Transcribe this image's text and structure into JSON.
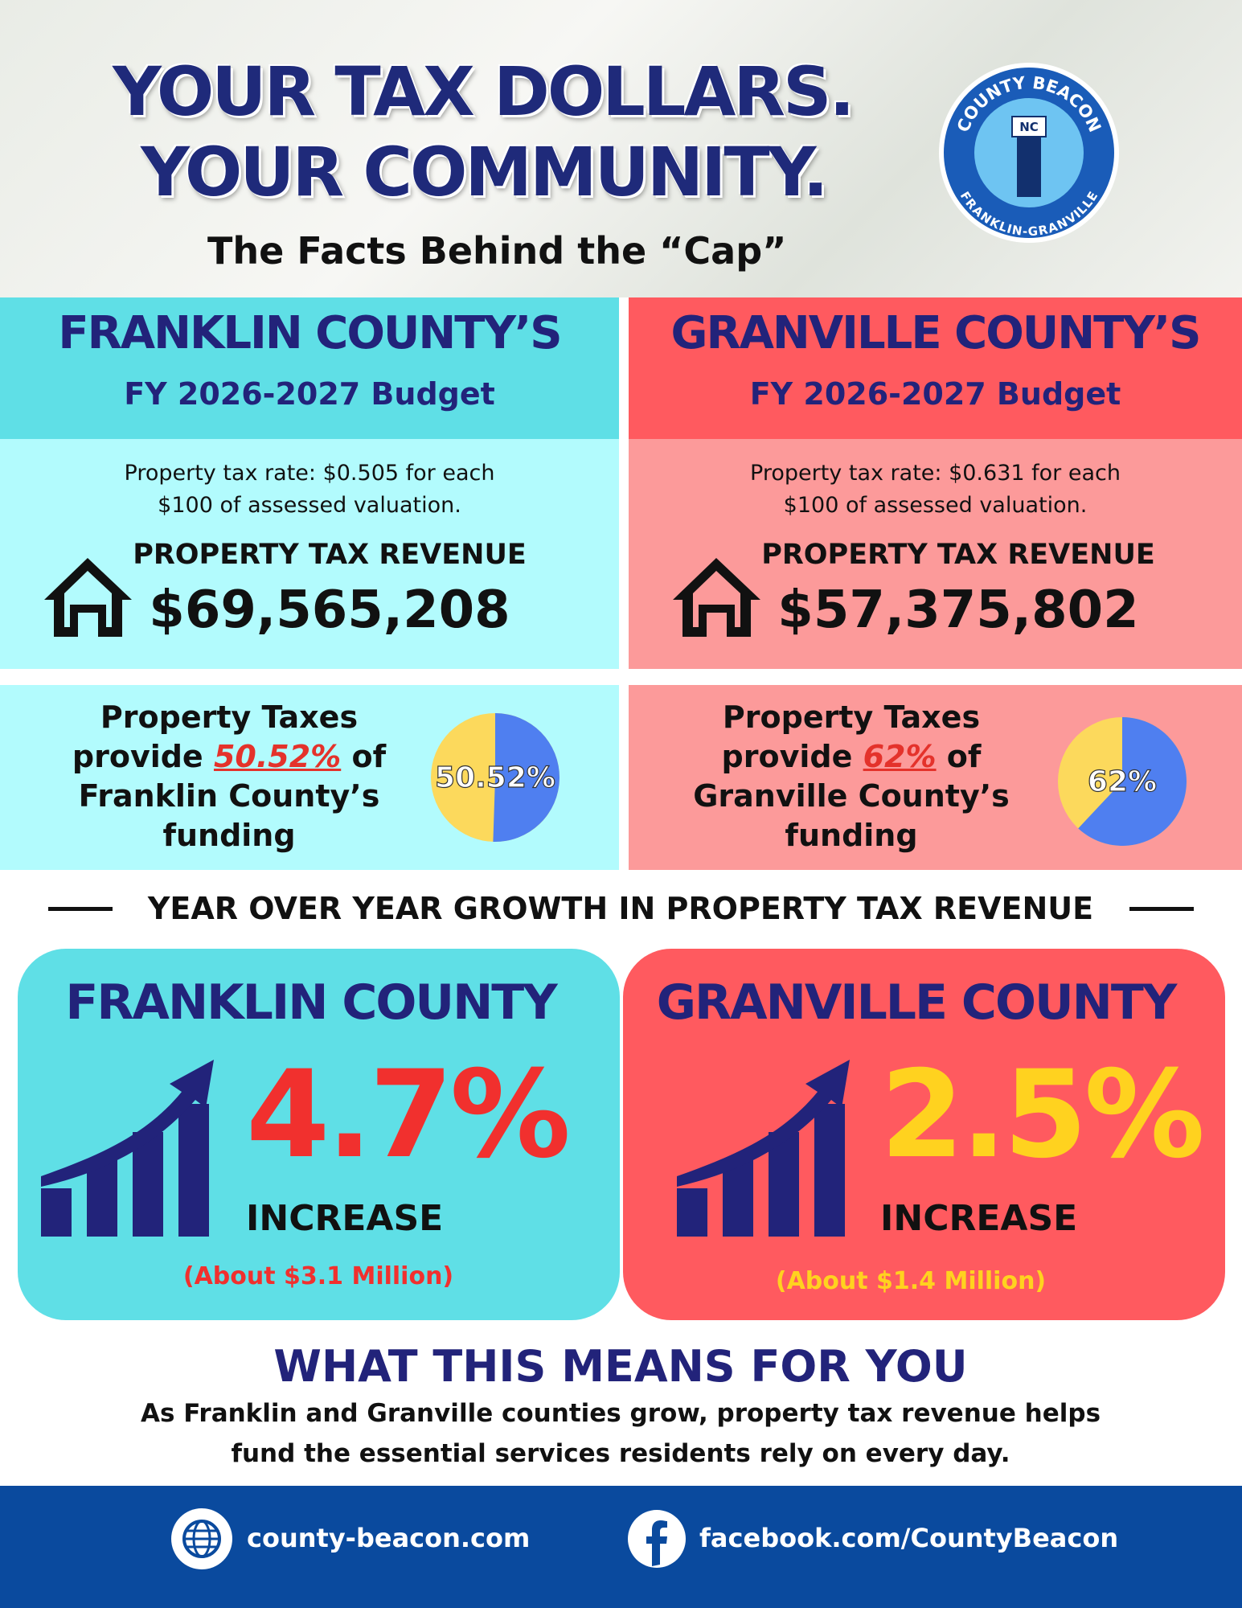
{
  "header": {
    "title_line1": "YOUR TAX DOLLARS.",
    "title_line2": "YOUR COMMUNITY.",
    "subtitle": "The Facts Behind the “Cap”",
    "logo": {
      "top": "COUNTY BEACON",
      "badge": "NC",
      "bottom": "FRANKLIN-GRANVILLE"
    }
  },
  "budgets": [
    {
      "county": "FRANKLIN COUNTY’S",
      "budget": "FY 2026-2027 Budget",
      "rate_line1": "Property tax rate: $0.505 for each",
      "rate_line2": "$100 of assessed valuation.",
      "revenue_label": "PROPERTY TAX REVENUE",
      "revenue": "$69,565,208",
      "share_line1": "Property Taxes",
      "share_pre": "provide",
      "share_pct": "50.52%",
      "share_post": "of",
      "share_line3": "Franklin County’s",
      "share_line4": "funding",
      "pie": {
        "type": "pie",
        "values": [
          50.52
        ],
        "value_labels": [
          "50.52%"
        ]
      }
    },
    {
      "county": "GRANVILLE COUNTY’S",
      "budget": "FY 2026-2027 Budget",
      "rate_line1": "Property tax rate: $0.631 for each",
      "rate_line2": "$100 of assessed valuation.",
      "revenue_label": "PROPERTY TAX REVENUE",
      "revenue": "$57,375,802",
      "share_line1": "Property Taxes",
      "share_pre": "provide",
      "share_pct": "62%",
      "share_post": "of",
      "share_line3": "Granville County’s",
      "share_line4": "funding",
      "pie": {
        "type": "pie",
        "values": [
          62
        ],
        "value_labels": [
          "62%"
        ]
      }
    }
  ],
  "growth": {
    "heading": "YEAR OVER YEAR GROWTH IN PROPERTY TAX REVENUE",
    "items": [
      {
        "county": "FRANKLIN COUNTY",
        "pct": "4.7%",
        "label": "INCREASE",
        "about": "(About $3.1 Million)"
      },
      {
        "county": "GRANVILLE COUNTY",
        "pct": "2.5%",
        "label": "INCREASE",
        "about": "(About $1.4 Million)"
      }
    ]
  },
  "closing": {
    "heading": "WHAT THIS MEANS FOR YOU",
    "line1": "As Franklin and Granville counties grow, property tax revenue helps",
    "line2": "fund the essential services residents rely on every day."
  },
  "footer": {
    "website": "county-beacon.com",
    "facebook": "facebook.com/CountyBeacon"
  }
}
